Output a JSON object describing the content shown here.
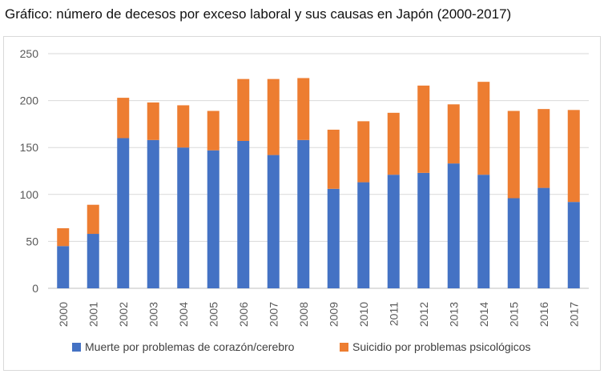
{
  "title": "Gráfico: número de decesos por exceso laboral y sus causas en Japón (2000-2017)",
  "chart_data": {
    "type": "bar",
    "stacked": true,
    "categories": [
      "2000",
      "2001",
      "2002",
      "2003",
      "2004",
      "2005",
      "2006",
      "2007",
      "2008",
      "2009",
      "2010",
      "2011",
      "2012",
      "2013",
      "2014",
      "2015",
      "2016",
      "2017"
    ],
    "series": [
      {
        "name": "Muerte por problemas de corazón/cerebro",
        "color": "#4472C4",
        "values": [
          45,
          58,
          160,
          158,
          150,
          147,
          157,
          142,
          158,
          106,
          113,
          121,
          123,
          133,
          121,
          96,
          107,
          92
        ]
      },
      {
        "name": "Suicidio por problemas psicológicos",
        "color": "#ED7D31",
        "values": [
          19,
          31,
          43,
          40,
          45,
          42,
          66,
          81,
          66,
          63,
          65,
          66,
          93,
          63,
          99,
          93,
          84,
          98
        ]
      }
    ],
    "yticks": [
      0,
      50,
      100,
      150,
      200,
      250
    ],
    "ylim": [
      0,
      250
    ],
    "grid": true,
    "legend_position": "bottom",
    "xlabel": "",
    "ylabel": ""
  }
}
